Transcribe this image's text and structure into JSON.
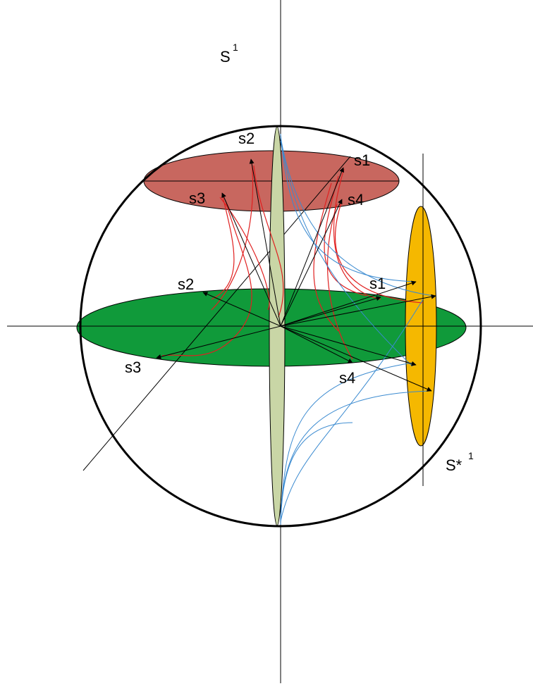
{
  "sphere_label": {
    "base": "S",
    "sup": "1"
  },
  "dual_label": {
    "base": "S*",
    "sup": "1"
  },
  "top_plane": [
    "s2",
    "s1",
    "s3",
    "s4"
  ],
  "equator": [
    "s2",
    "s1",
    "s3",
    "s4"
  ]
}
